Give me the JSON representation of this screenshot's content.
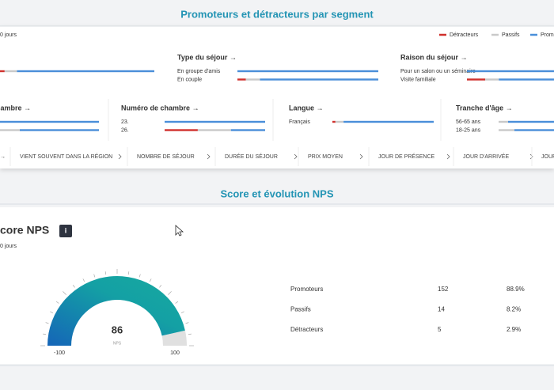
{
  "section1": {
    "title": "Promoteurs et détracteurs par segment",
    "period": "0 jours",
    "legend": [
      "Détracteurs",
      "Passifs",
      "Prom"
    ],
    "cards": [
      {
        "title": null,
        "rows": [
          {
            "label": null,
            "values": [
              3,
              8,
              89
            ]
          }
        ]
      },
      {
        "title": "Type du séjour →",
        "rows": [
          {
            "label": "En groupe d'amis",
            "values": [
              0,
              0,
              100
            ]
          },
          {
            "label": "En couple",
            "values": [
              6,
              10,
              84
            ]
          }
        ]
      },
      {
        "title": "Raison du séjour →",
        "rows": [
          {
            "label": "Pour un salon ou un séminaire",
            "values": [
              0,
              0,
              100
            ]
          },
          {
            "label": "Visite familiale",
            "values": [
              20,
              15,
              65
            ]
          }
        ]
      },
      {
        "title": "hambre →",
        "rows": [
          {
            "label": null,
            "values": [
              0,
              0,
              100
            ]
          },
          {
            "label": null,
            "values": [
              0,
              20,
              80
            ]
          }
        ]
      },
      {
        "title": "Numéro de chambre →",
        "rows": [
          {
            "label": "23.",
            "values": [
              0,
              0,
              100
            ]
          },
          {
            "label": "26.",
            "values": [
              33,
              33,
              34
            ]
          }
        ]
      },
      {
        "title": "Langue →",
        "rows": [
          {
            "label": "Français",
            "values": [
              3,
              8,
              89
            ]
          }
        ]
      },
      {
        "title": "Tranche d'âge →",
        "rows": [
          {
            "label": "56-65 ans",
            "values": [
              0,
              15,
              85
            ]
          },
          {
            "label": "18-25 ans",
            "values": [
              0,
              25,
              75
            ]
          }
        ]
      }
    ],
    "tabs": [
      "→",
      "VIENT SOUVENT DANS LA RÉGION",
      "NOMBRE DE SÉJOUR",
      "DURÉE DU SÉJOUR",
      "PRIX MOYEN",
      "JOUR DE PRÉSENCE",
      "JOUR D'ARRIVÉE",
      "JOUR"
    ]
  },
  "section2": {
    "title": "Score et évolution NPS",
    "card_title": "core NPS",
    "info": "i",
    "period": "0 jours",
    "gauge": {
      "value": 86,
      "label": "NPS",
      "min": -100,
      "max": 100
    },
    "table": [
      [
        "Promoteurs",
        152,
        "88.9%"
      ],
      [
        "Passifs",
        14,
        "8.2%"
      ],
      [
        "Détracteurs",
        5,
        "2.9%"
      ]
    ]
  }
}
